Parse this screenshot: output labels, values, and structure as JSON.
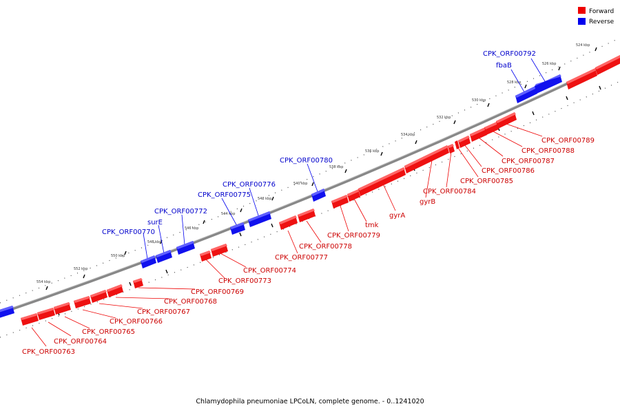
{
  "caption": "Chlamydophila pneumoniae LPCoLN, complete genome. - 0..1241020",
  "colors": {
    "forward": "#ee0000",
    "reverse": "#0000ee",
    "axis": "#888888"
  },
  "legend": [
    {
      "label": "Forward",
      "strand": "forward"
    },
    {
      "label": "Reverse",
      "strand": "reverse"
    }
  ],
  "ticks": [
    {
      "label": "524 kbp",
      "kbp": 524
    },
    {
      "label": "526 kbp",
      "kbp": 526
    },
    {
      "label": "528 kbp",
      "kbp": 528
    },
    {
      "label": "530 kbp",
      "kbp": 530
    },
    {
      "label": "532 kbp",
      "kbp": 532
    },
    {
      "label": "534 kbp",
      "kbp": 534
    },
    {
      "label": "536 kbp",
      "kbp": 536
    },
    {
      "label": "538 kbp",
      "kbp": 538
    },
    {
      "label": "540 kbp",
      "kbp": 540
    },
    {
      "label": "542 kbp",
      "kbp": 542
    },
    {
      "label": "544 kbp",
      "kbp": 544
    },
    {
      "label": "546 kbp",
      "kbp": 546
    },
    {
      "label": "548 kbp",
      "kbp": 548
    },
    {
      "label": "550 kbp",
      "kbp": 550
    },
    {
      "label": "552 kbp",
      "kbp": 552
    },
    {
      "label": "554 kbp",
      "kbp": 554
    }
  ],
  "genes": [
    {
      "label": "CPK_ORF00763",
      "strand": "forward"
    },
    {
      "label": "CPK_ORF00764",
      "strand": "forward"
    },
    {
      "label": "CPK_ORF00765",
      "strand": "forward"
    },
    {
      "label": "CPK_ORF00766",
      "strand": "forward"
    },
    {
      "label": "CPK_ORF00767",
      "strand": "forward"
    },
    {
      "label": "CPK_ORF00768",
      "strand": "forward"
    },
    {
      "label": "CPK_ORF00769",
      "strand": "forward"
    },
    {
      "label": "CPK_ORF00770",
      "strand": "reverse"
    },
    {
      "label": "surE",
      "strand": "reverse"
    },
    {
      "label": "CPK_ORF00772",
      "strand": "reverse"
    },
    {
      "label": "CPK_ORF00773",
      "strand": "forward"
    },
    {
      "label": "CPK_ORF00774",
      "strand": "forward"
    },
    {
      "label": "CPK_ORF00775",
      "strand": "reverse"
    },
    {
      "label": "CPK_ORF00776",
      "strand": "reverse"
    },
    {
      "label": "CPK_ORF00777",
      "strand": "forward"
    },
    {
      "label": "CPK_ORF00778",
      "strand": "forward"
    },
    {
      "label": "CPK_ORF00779",
      "strand": "forward"
    },
    {
      "label": "CPK_ORF00780",
      "strand": "reverse"
    },
    {
      "label": "tmk",
      "strand": "forward"
    },
    {
      "label": "gyrA",
      "strand": "forward"
    },
    {
      "label": "gyrB",
      "strand": "forward"
    },
    {
      "label": "CPK_ORF00784",
      "strand": "forward"
    },
    {
      "label": "CPK_ORF00785",
      "strand": "forward"
    },
    {
      "label": "CPK_ORF00786",
      "strand": "forward"
    },
    {
      "label": "CPK_ORF00787",
      "strand": "forward"
    },
    {
      "label": "CPK_ORF00788",
      "strand": "forward"
    },
    {
      "label": "CPK_ORF00789",
      "strand": "forward"
    },
    {
      "label": "fbaB",
      "strand": "reverse"
    },
    {
      "label": "CPK_ORF00792",
      "strand": "reverse"
    }
  ]
}
